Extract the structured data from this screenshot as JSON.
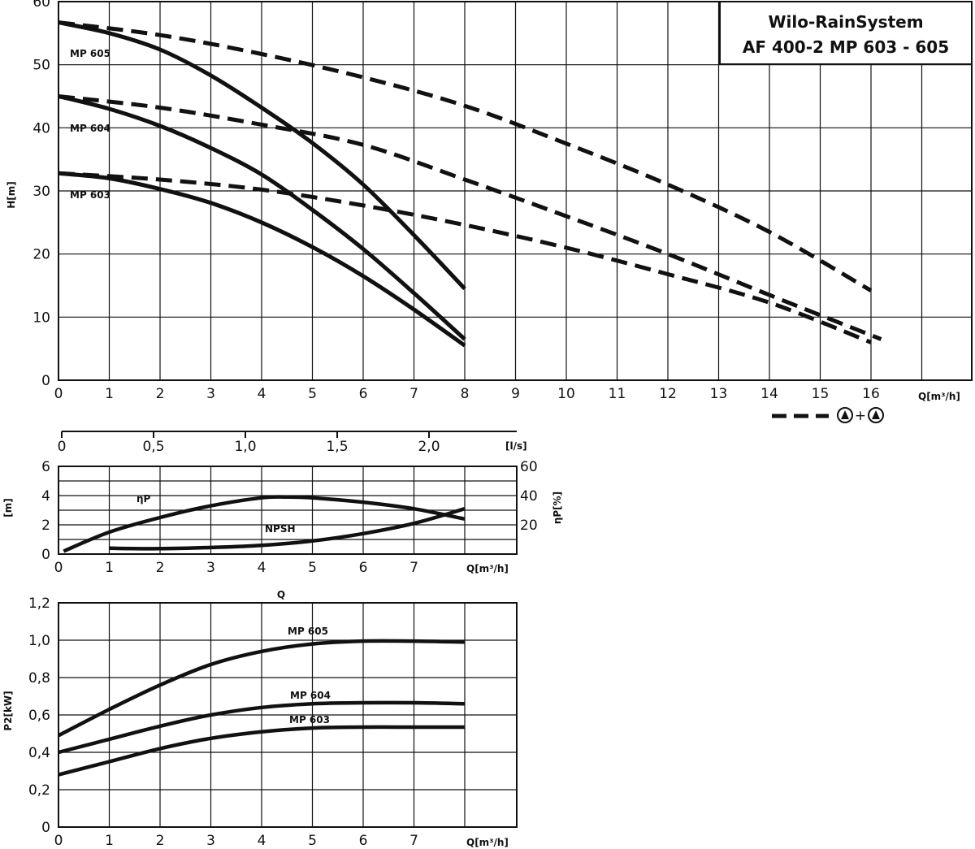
{
  "title_box": {
    "line1": "Wilo-RainSystem",
    "line2": "AF 400-2   MP 603 - 605"
  },
  "legend": {
    "symbol_text": "+",
    "style": "dashed"
  },
  "colors": {
    "curve": "#111111",
    "grid": "#111111",
    "background": "#ffffff"
  },
  "chart_data": [
    {
      "type": "line",
      "name": "head",
      "xlabel": "Q[m³/h]",
      "ylabel": "H[m]",
      "xlim": [
        0,
        18
      ],
      "ylim": [
        0,
        60
      ],
      "xticks": [
        0,
        1,
        2,
        3,
        4,
        5,
        6,
        7,
        8,
        9,
        10,
        11,
        12,
        13,
        14,
        15,
        16
      ],
      "yticks": [
        0,
        10,
        20,
        30,
        40,
        50,
        60
      ],
      "grid": true,
      "curve_labels": [
        "MP 605",
        "MP 604",
        "MP 603"
      ],
      "series": [
        {
          "name": "MP 605",
          "style": "solid",
          "x": [
            0,
            1,
            2,
            3,
            4,
            5,
            6,
            7,
            8
          ],
          "y": [
            56.7,
            55,
            52.4,
            48.3,
            43.2,
            37.6,
            31,
            23,
            14.5
          ]
        },
        {
          "name": "MP 604",
          "style": "solid",
          "x": [
            0,
            1,
            2,
            3,
            4,
            5,
            6,
            7,
            8
          ],
          "y": [
            45,
            43,
            40.3,
            36.8,
            32.6,
            27,
            20.8,
            13.8,
            6.5
          ]
        },
        {
          "name": "MP 603",
          "style": "solid",
          "x": [
            0,
            1,
            2,
            3,
            4,
            5,
            6,
            7,
            8
          ],
          "y": [
            32.8,
            32,
            30.3,
            28.1,
            25,
            21.1,
            16.5,
            11.2,
            5.5
          ]
        },
        {
          "style": "dashed",
          "x": [
            0,
            2,
            4,
            6,
            8,
            10,
            12,
            14,
            16
          ],
          "y": [
            56.7,
            54.7,
            51.7,
            48,
            43.5,
            37.5,
            31,
            23.5,
            14.2
          ]
        },
        {
          "style": "dashed",
          "x": [
            0,
            2,
            4,
            6,
            8,
            10,
            12,
            14,
            16.2
          ],
          "y": [
            45,
            43.2,
            40.5,
            37.3,
            31.8,
            26,
            20,
            13.5,
            6.5
          ]
        },
        {
          "style": "dashed",
          "x": [
            0,
            2,
            4,
            6,
            8,
            10,
            12,
            14,
            16
          ],
          "y": [
            32.8,
            31.8,
            30.2,
            27.7,
            24.6,
            21,
            16.8,
            12.3,
            6
          ]
        }
      ]
    },
    {
      "type": "line",
      "name": "flow_ls_axis",
      "xlabel": "[l/s]",
      "xlim": [
        0,
        2.5
      ],
      "xticks": [
        0,
        0.5,
        1.0,
        1.5,
        2.0
      ],
      "xtick_labels": [
        "0",
        "0,5",
        "1,0",
        "1,5",
        "2,0"
      ]
    },
    {
      "type": "line",
      "name": "npsh_efficiency",
      "xlabel": "Q[m³/h]",
      "ylabel": "[m]",
      "ylabel_right": "ηP[%]",
      "xlim": [
        0,
        9
      ],
      "ylim": [
        0,
        6
      ],
      "ylim_right": [
        0,
        60
      ],
      "xticks": [
        0,
        1,
        2,
        3,
        4,
        5,
        6,
        7
      ],
      "yticks": [
        0,
        2,
        4,
        6
      ],
      "yticks_right": [
        20,
        40,
        60
      ],
      "grid": true,
      "curve_labels": [
        "ηP",
        "NPSH"
      ],
      "series": [
        {
          "name": "ηP",
          "axis": "right",
          "x": [
            0.1,
            1,
            2,
            3,
            4,
            4.5,
            5,
            6,
            7,
            8
          ],
          "y": [
            2,
            15,
            25,
            33,
            38.5,
            39,
            38.5,
            35.5,
            31,
            24
          ]
        },
        {
          "name": "NPSH",
          "axis": "left",
          "x": [
            1,
            2,
            3,
            4,
            5,
            6,
            7,
            8
          ],
          "y": [
            0.4,
            0.37,
            0.45,
            0.6,
            0.9,
            1.4,
            2.1,
            3.1
          ]
        }
      ],
      "footer_label": "Q"
    },
    {
      "type": "line",
      "name": "power",
      "xlabel": "Q[m³/h]",
      "ylabel": "P2[kW]",
      "xlim": [
        0,
        9
      ],
      "ylim": [
        0,
        1.2
      ],
      "xticks": [
        0,
        1,
        2,
        3,
        4,
        5,
        6,
        7
      ],
      "yticks": [
        0,
        0.2,
        0.4,
        0.6,
        0.8,
        1.0,
        1.2
      ],
      "ytick_labels": [
        "0",
        "0,2",
        "0,4",
        "0,6",
        "0,8",
        "1,0",
        "1,2"
      ],
      "grid": true,
      "curve_labels": [
        "MP 605",
        "MP 604",
        "MP 603"
      ],
      "series": [
        {
          "name": "MP 605",
          "x": [
            0,
            1,
            2,
            3,
            4,
            5,
            6,
            7,
            8
          ],
          "y": [
            0.49,
            0.63,
            0.76,
            0.87,
            0.94,
            0.98,
            0.995,
            0.995,
            0.99
          ]
        },
        {
          "name": "MP 604",
          "x": [
            0,
            1,
            2,
            3,
            4,
            5,
            6,
            7,
            8
          ],
          "y": [
            0.4,
            0.47,
            0.54,
            0.6,
            0.64,
            0.66,
            0.665,
            0.665,
            0.66
          ]
        },
        {
          "name": "MP 603",
          "x": [
            0,
            1,
            2,
            3,
            4,
            5,
            6,
            7,
            8
          ],
          "y": [
            0.28,
            0.35,
            0.42,
            0.475,
            0.51,
            0.53,
            0.535,
            0.535,
            0.535
          ]
        }
      ]
    }
  ]
}
